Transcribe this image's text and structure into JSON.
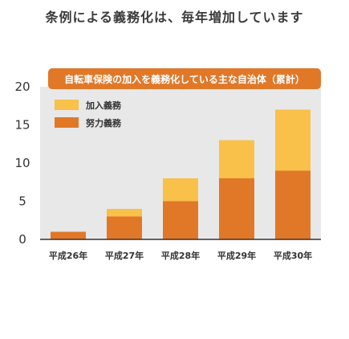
{
  "headline": "条例による義務化は、毎年増加しています",
  "chart_data": {
    "type": "bar",
    "stacked": true,
    "title": "自転車保険の加入を義務化している主な自治体（累計）",
    "categories": [
      "平成26年",
      "平成27年",
      "平成28年",
      "平成29年",
      "平成30年"
    ],
    "series": [
      {
        "name": "努力義務",
        "color": "#e07828",
        "values": [
          1,
          3,
          5,
          8,
          9
        ]
      },
      {
        "name": "加入義務",
        "color": "#f9c04a",
        "values": [
          0,
          1,
          3,
          5,
          8
        ]
      }
    ],
    "yticks": [
      0,
      5,
      10,
      15,
      20
    ],
    "ylim": [
      0,
      20
    ],
    "grid": false,
    "legend_position": "top-left"
  }
}
